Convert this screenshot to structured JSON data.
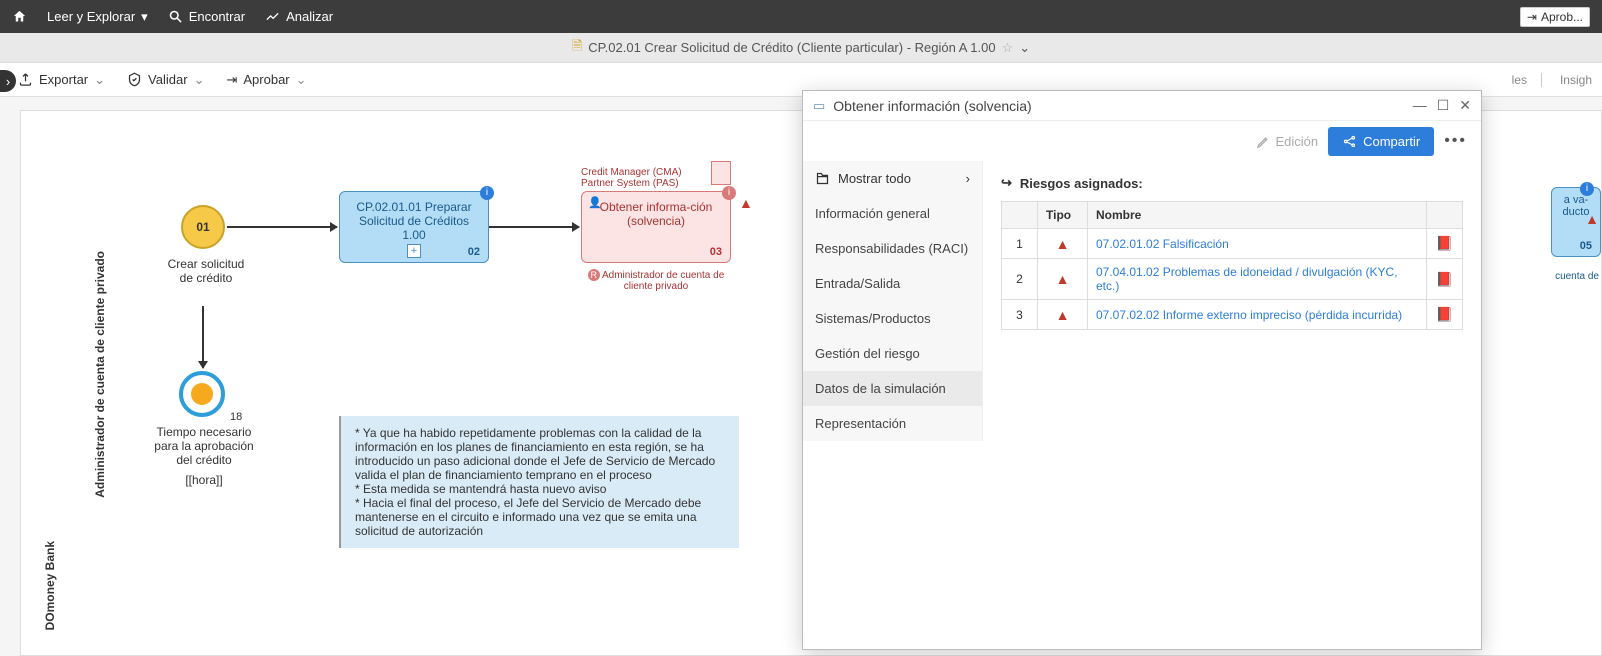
{
  "topbar": {
    "read_explore": "Leer y Explorar",
    "find": "Encontrar",
    "analyze": "Analizar",
    "approve_btn": "Aprob..."
  },
  "titlebar": {
    "title": "CP.02.01 Crear Solicitud de Crédito (Cliente particular) - Región A 1.00"
  },
  "toolbar": {
    "export": "Exportar",
    "validate": "Validar",
    "approve": "Aprobar",
    "right1": "les",
    "right2": "Insigh"
  },
  "swimlane": {
    "pool": "DOmoney Bank",
    "lane": "Administrador de cuenta de cliente privado"
  },
  "bpmn": {
    "start_num": "01",
    "start_label": "Crear solicitud de crédito",
    "task1": "CP.02.01.01 Preparar Solicitud de Créditos 1.00",
    "task1_num": "02",
    "task2_above1": "Credit Manager (CMA)",
    "task2_above2": "Partner System (PAS)",
    "task2": "Obtener informa-ción (solvencia)",
    "task2_num": "03",
    "task2_below": "Administrador de cuenta de cliente privado",
    "timer_num": "18",
    "timer_label1": "Tiempo necesario para la aprobación del crédito",
    "timer_label2": "[[hora]]",
    "note": "* Ya que ha habido repetidamente problemas con la calidad de la información en los planes de financiamiento en esta región, se ha introducido un paso adicional donde el Jefe de Servicio de Mercado valida el plan de financiamiento temprano en el proceso\n* Esta medida se mantendrá hasta nuevo aviso\n* Hacia el final del proceso, el Jefe del Servicio de Mercado debe mantenerse en el circuito e informado una vez que se emita una solicitud de autorización",
    "clipped_task": "a va-\nducto",
    "clipped_num": "05",
    "clipped_below": "cuenta de"
  },
  "panel": {
    "title": "Obtener información (solvencia)",
    "edicion": "Edición",
    "share": "Compartir",
    "nav": {
      "show_all": "Mostrar todo",
      "general": "Información general",
      "raci": "Responsabilidades (RACI)",
      "io": "Entrada/Salida",
      "systems": "Sistemas/Productos",
      "risk": "Gestión del riesgo",
      "sim": "Datos de la simulación",
      "repr": "Representación"
    },
    "content": {
      "heading": "Riesgos asignados:",
      "col_tipo": "Tipo",
      "col_nombre": "Nombre",
      "rows": [
        {
          "n": "1",
          "name": "07.02.01.02 Falsificación"
        },
        {
          "n": "2",
          "name": "07.04.01.02 Problemas de idoneidad / divulgación (KYC, etc.)"
        },
        {
          "n": "3",
          "name": "07.07.02.02 Informe externo impreciso (pérdida incurrida)"
        }
      ]
    }
  }
}
